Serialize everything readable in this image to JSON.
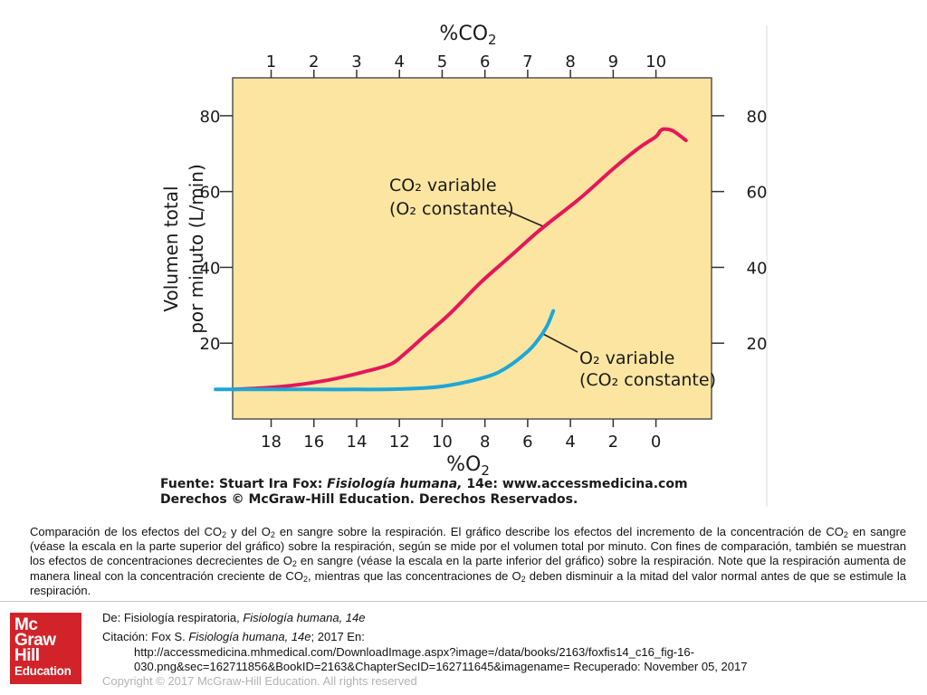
{
  "chart_data": {
    "type": "line",
    "ylabel_line1": "Volumen total",
    "ylabel_line2": "por minuto (L/min)",
    "top_axis_title": "%CO",
    "top_axis_title_sub": "2",
    "bottom_axis_title": "%O",
    "bottom_axis_title_sub": "2",
    "top_ticks": [
      "1",
      "2",
      "3",
      "4",
      "5",
      "6",
      "7",
      "8",
      "9",
      "10"
    ],
    "bottom_ticks": [
      "18",
      "16",
      "14",
      "12",
      "10",
      "8",
      "6",
      "4",
      "2",
      "0"
    ],
    "y_ticks": [
      "20",
      "40",
      "60",
      "80"
    ],
    "ylim": [
      0,
      90
    ],
    "xlim_co2": [
      0.1,
      11.3
    ],
    "series": [
      {
        "label_line1": "CO₂ variable",
        "label_line2": "(O₂ constante)",
        "color": "#e4175a",
        "x_axis": "%CO2",
        "x": [
          0.1,
          1.2,
          2.3,
          3.2,
          3.8,
          4.1,
          4.6,
          5.2,
          5.9,
          6.6,
          7.3,
          8.2,
          9.0,
          9.6,
          10.0,
          10.1,
          10.2,
          10.4,
          10.7
        ],
        "y": [
          7.8,
          8.5,
          10.2,
          12.5,
          14.5,
          17.0,
          22.0,
          28.0,
          36.0,
          43.0,
          50.0,
          58.0,
          66.0,
          71.5,
          74.5,
          76.0,
          76.5,
          76.0,
          73.5
        ]
      },
      {
        "label_line1": "O₂ variable",
        "label_line2": "(CO₂ constante)",
        "color": "#1ea6d8",
        "x_axis": "%O2",
        "x": [
          20.6,
          18,
          16,
          14,
          12,
          10,
          8,
          7,
          6,
          5.5,
          5.1,
          4.8
        ],
        "y": [
          7.8,
          7.8,
          7.8,
          7.8,
          7.9,
          8.6,
          11.0,
          13.5,
          17.8,
          21.0,
          24.5,
          28.5
        ]
      }
    ]
  },
  "source_line1_a": "Fuente: Stuart Ira Fox: ",
  "source_line1_b": "Fisiología humana,",
  "source_line1_c": " 14e: www.accessmedicina.com",
  "source_line2": "Derechos © McGraw-Hill Education. Derechos Reservados.",
  "caption": {
    "p1": "Comparación de los efectos del CO",
    "p2": " y del O",
    "p3": " en sangre sobre la respiración. El gráfico describe los efectos del incremento de la concentración de CO",
    "p4": " en sangre (véase la escala en la parte superior del gráfico) sobre la respiración, según se mide por el volumen total por minuto. Con fines de comparación, también se muestran los efectos de concentraciones decrecientes de O",
    "p5": " en sangre (véase la escala en la parte inferior del gráfico) sobre la respiración. Note que la respiración aumenta de manera lineal con la concentración creciente de CO",
    "p6": ", mientras que las concentraciones de O",
    "p7": " deben disminuir a la mitad del valor normal antes de que se estimule la respiración.",
    "sub": "2"
  },
  "logo": {
    "line1": "Mc",
    "line2": "Graw",
    "line3": "Hill",
    "line4": "Education"
  },
  "reference": {
    "de_prefix": "De: Fisiología respiratoria, ",
    "de_title": "Fisiología humana, 14e",
    "citation_prefix": "Citación: Fox S. ",
    "citation_title": "Fisiología humana, 14e",
    "citation_suffix": "; 2017 En:",
    "url_line1": "http://accessmedicina.mhmedical.com/DownloadImage.aspx?image=/data/books/2163/foxfis14_c16_fig-16-",
    "url_line2": "030.png&sec=162711856&BookID=2163&ChapterSecID=162711645&imagename= Recuperado: November 05, 2017"
  },
  "copyright": "Copyright © 2017 McGraw-Hill Education. All rights reserved",
  "colors": {
    "plot_bg": "#fbe5a0",
    "co2_line": "#e4175a",
    "o2_line": "#1ea6d8"
  }
}
